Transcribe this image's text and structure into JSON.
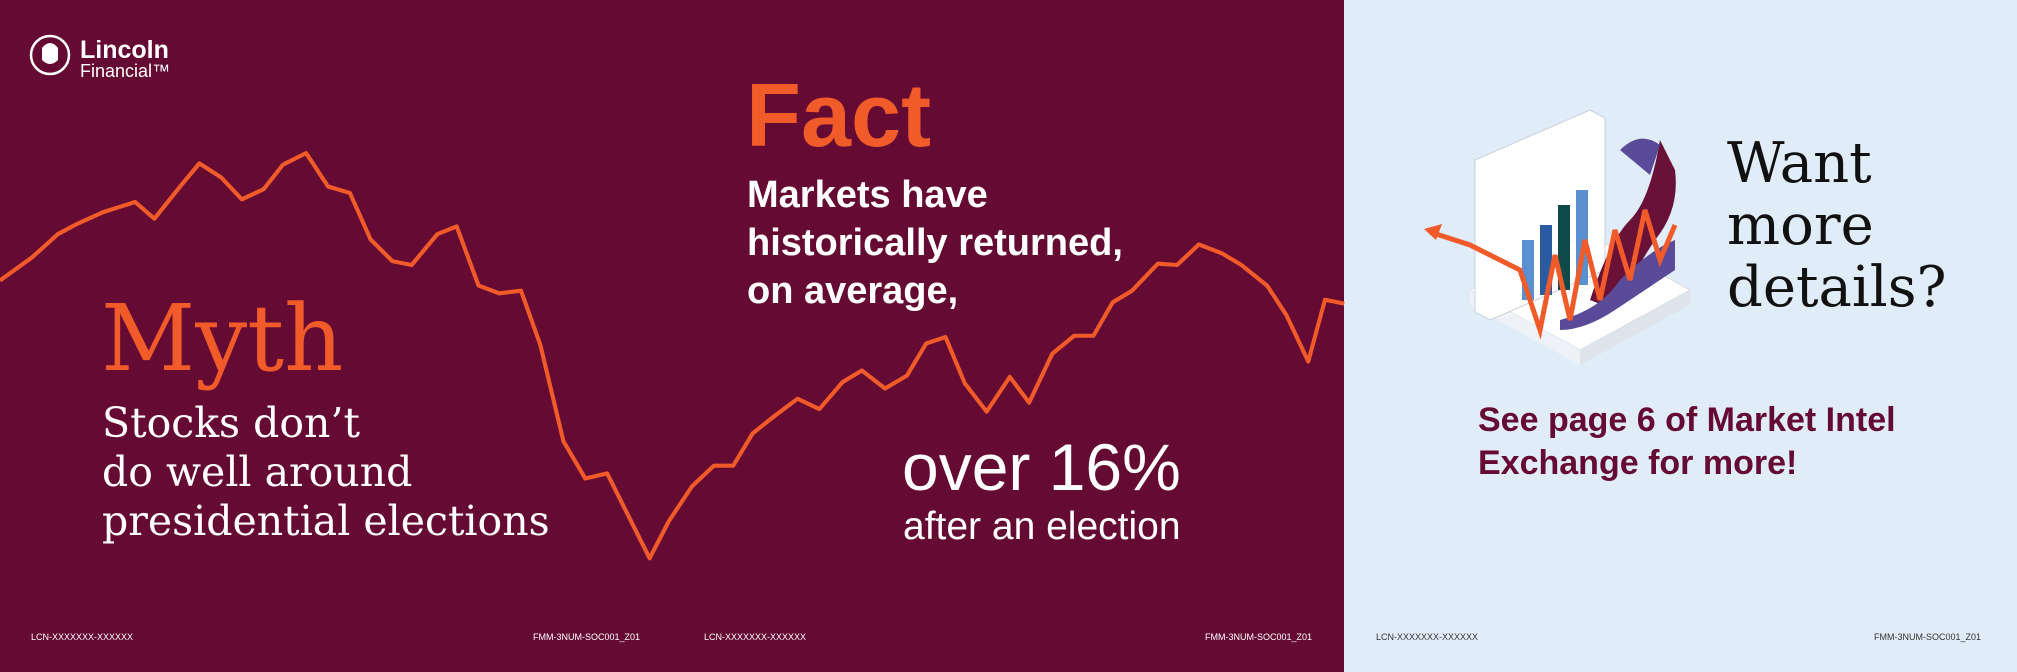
{
  "logo": {
    "name": "Lincoln",
    "sub": "Financial™"
  },
  "myth": {
    "title": "Myth",
    "lines": [
      "Stocks don’t",
      "do well around",
      "presidential elections"
    ]
  },
  "fact": {
    "title": "Fact",
    "lines": [
      "Markets have",
      "historically returned,",
      "on average,"
    ],
    "stat": "over 16%",
    "stat_note": "after an election"
  },
  "cta": {
    "heading": [
      "Want",
      "more",
      "details?"
    ],
    "text": [
      "See page 6 of Market Intel",
      "Exchange for more!"
    ]
  },
  "codes": [
    "LCN-XXXXXXX-XXXXXX",
    "FMM-3NUM-SOC001_Z01",
    "LCN-XXXXXXX-XXXXXX",
    "FMM-3NUM-SOC001_Z01",
    "LCN-XXXXXXX-XXXXXX",
    "FMM-3NUM-SOC001_Z01"
  ]
}
